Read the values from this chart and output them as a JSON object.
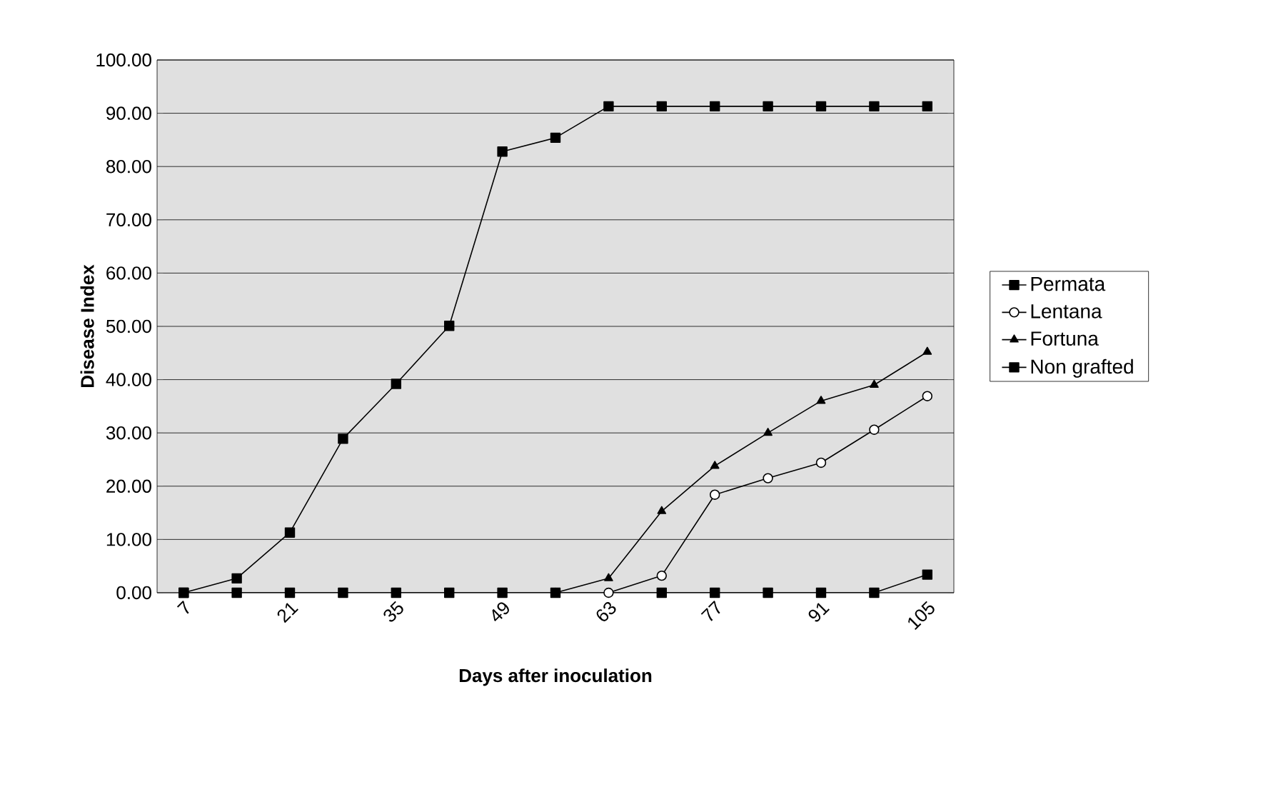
{
  "chart_data": {
    "type": "line",
    "xlabel": "Days after inoculation",
    "ylabel": "Disease Index",
    "categories": [
      "7",
      null,
      "21",
      null,
      "35",
      null,
      "49",
      null,
      "63",
      null,
      "77",
      null,
      "91",
      null,
      "105"
    ],
    "ylim": [
      0,
      100
    ],
    "yticks": [
      {
        "value": 0,
        "label": "0.00"
      },
      {
        "value": 10,
        "label": "10.00"
      },
      {
        "value": 20,
        "label": "20.00"
      },
      {
        "value": 30,
        "label": "30.00"
      },
      {
        "value": 40,
        "label": "40.00"
      },
      {
        "value": 50,
        "label": "50.00"
      },
      {
        "value": 60,
        "label": "60.00"
      },
      {
        "value": 70,
        "label": "70.00"
      },
      {
        "value": 80,
        "label": "80.00"
      },
      {
        "value": 90,
        "label": "90.00"
      },
      {
        "value": 100,
        "label": "100.00"
      }
    ],
    "grid": "y",
    "legend": "right",
    "line_style": "solid",
    "series": [
      {
        "name": "Permata",
        "color": "#000000",
        "marker": "square",
        "values": [
          0,
          0,
          0,
          0,
          0,
          0,
          0,
          0,
          null,
          0,
          0,
          0,
          0,
          0,
          3.4
        ]
      },
      {
        "name": "Lentana",
        "color": "#000000",
        "marker": "circle",
        "values": [
          null,
          null,
          null,
          null,
          null,
          null,
          null,
          null,
          0,
          3.2,
          18.4,
          21.5,
          24.4,
          30.6,
          36.9
        ]
      },
      {
        "name": "Fortuna",
        "color": "#000000",
        "marker": "triangle",
        "values": [
          null,
          null,
          null,
          null,
          null,
          null,
          null,
          0,
          2.7,
          15.3,
          23.8,
          30.0,
          36.0,
          39.0,
          45.2
        ]
      },
      {
        "name": "Non grafted",
        "color": "#000000",
        "marker": "square",
        "values": [
          0,
          2.7,
          11.3,
          28.9,
          39.2,
          50.1,
          82.8,
          85.4,
          91.3,
          91.3,
          91.3,
          91.3,
          91.3,
          91.3,
          91.3
        ]
      }
    ]
  }
}
